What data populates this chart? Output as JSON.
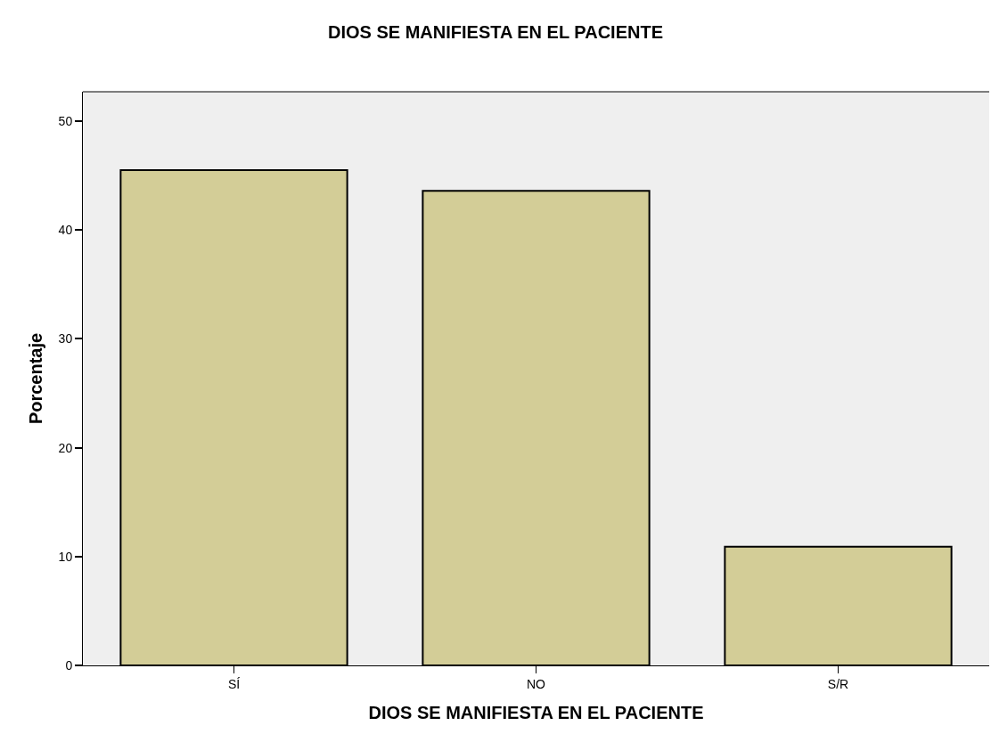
{
  "chart_data": {
    "type": "bar",
    "title": "DIOS SE MANIFIESTA EN EL PACIENTE",
    "xlabel": "DIOS SE MANIFIESTA EN EL PACIENTE",
    "ylabel": "Porcentaje",
    "categories": [
      "SÍ",
      "NO",
      "S/R"
    ],
    "values": [
      45.5,
      43.6,
      10.9
    ],
    "color": "#d3cd97",
    "ylim": [
      0,
      52.7
    ],
    "yticks": [
      0,
      10,
      20,
      30,
      40,
      50
    ],
    "grid": false
  }
}
